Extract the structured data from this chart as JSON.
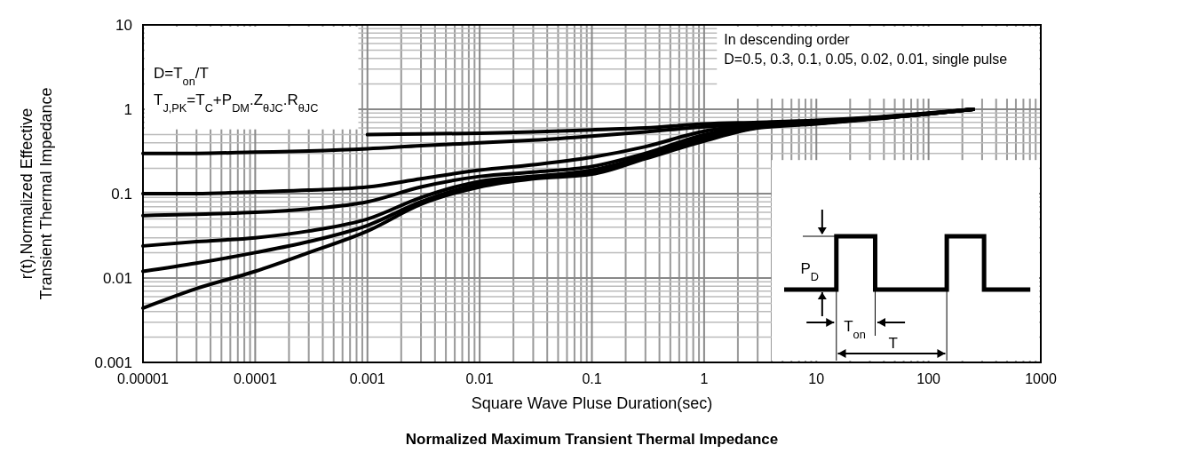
{
  "chart_data": {
    "type": "line",
    "title": "Normalized Maximum Transient Thermal Impedance",
    "xlabel": "Square Wave Pluse Duration(sec)",
    "ylabel": "r(t),Normalized Effective Transient Thermal Impedance",
    "log": "xy",
    "grid": true,
    "line_style": "solid",
    "marker": "none",
    "xlim": [
      1e-05,
      1000
    ],
    "xticks": [
      {
        "value": 1e-05,
        "label": "0.00001"
      },
      0.0001,
      0.001,
      0.01,
      0.1,
      1,
      10,
      100,
      1000
    ],
    "ylim": [
      0.001,
      10
    ],
    "yticks": [
      0.001,
      0.01,
      0.1,
      1,
      10
    ],
    "x": [
      1e-05,
      3e-05,
      0.0001,
      0.0003,
      0.001,
      0.003,
      0.01,
      0.03,
      0.1,
      0.3,
      1,
      3,
      10,
      30,
      100,
      250
    ],
    "series": [
      {
        "color": "#000000",
        "values": [
          null,
          null,
          null,
          null,
          0.5,
          0.51,
          0.52,
          0.54,
          0.57,
          0.6,
          0.67,
          0.7,
          0.74,
          0.8,
          0.9,
          1.0
        ]
      },
      {
        "color": "#000000",
        "values": [
          0.3,
          0.3,
          0.31,
          0.32,
          0.34,
          0.37,
          0.4,
          0.43,
          0.48,
          0.54,
          0.62,
          0.68,
          0.72,
          0.79,
          0.89,
          1.0
        ]
      },
      {
        "color": "#000000",
        "values": [
          0.1,
          0.1,
          0.105,
          0.11,
          0.12,
          0.15,
          0.19,
          0.22,
          0.27,
          0.36,
          0.55,
          0.65,
          0.7,
          0.78,
          0.89,
          1.0
        ]
      },
      {
        "color": "#000000",
        "values": [
          0.055,
          0.057,
          0.06,
          0.066,
          0.08,
          0.12,
          0.16,
          0.18,
          0.21,
          0.3,
          0.5,
          0.63,
          0.69,
          0.77,
          0.88,
          1.0
        ]
      },
      {
        "color": "#000000",
        "values": [
          0.024,
          0.027,
          0.03,
          0.036,
          0.05,
          0.09,
          0.14,
          0.16,
          0.19,
          0.28,
          0.46,
          0.62,
          0.68,
          0.77,
          0.88,
          1.0
        ]
      },
      {
        "color": "#000000",
        "values": [
          0.012,
          0.015,
          0.02,
          0.027,
          0.042,
          0.08,
          0.13,
          0.155,
          0.18,
          0.27,
          0.44,
          0.61,
          0.68,
          0.77,
          0.88,
          1.0
        ]
      },
      {
        "color": "#000000",
        "values": [
          0.0044,
          0.0075,
          0.012,
          0.02,
          0.036,
          0.075,
          0.12,
          0.15,
          0.17,
          0.26,
          0.42,
          0.6,
          0.67,
          0.76,
          0.88,
          1.0
        ]
      }
    ],
    "annotations": [
      "D=T$_{on}$/T",
      "T$_{J,PK}$=T$_{C}$+P$_{DM}$.Z$_{θJC}$.R$_{θJC}$",
      "In descending order",
      "D=0.5, 0.3, 0.1, 0.05, 0.02, 0.01, single pulse",
      "P$_{D}$",
      "T$_{on}$",
      "T"
    ]
  }
}
